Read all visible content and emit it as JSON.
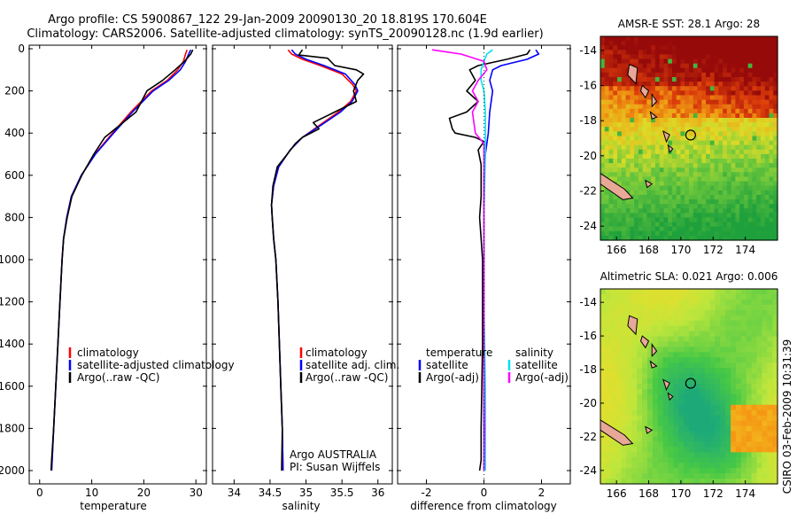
{
  "figure": {
    "title_line1": "Argo profile: CS 5900867_122 29-Jan-2009 20090130_20 18.819S 170.604E",
    "title_line2": "Climatology: CARS2006. Satellite-adjusted climatology: synTS_20090128.nc (1.9d earlier)",
    "side_label": "CSIRO 03-Feb-2009 10:31:39"
  },
  "colors": {
    "climatology": "#ff0000",
    "satellite": "#0000ff",
    "argo": "#000000",
    "sal_satellite": "#00e0f0",
    "sal_argo": "#ff00ff",
    "island": "#e8a898",
    "land_outline": "#000000"
  },
  "chart_data": [
    {
      "type": "line",
      "name": "temperature-profile",
      "xlabel": "temperature",
      "ylabel": "",
      "xlim": [
        -2,
        32
      ],
      "ylim": [
        2050,
        0
      ],
      "xticks": [
        0,
        10,
        20,
        30
      ],
      "yticks": [
        0,
        200,
        400,
        600,
        800,
        1000,
        1200,
        1400,
        1600,
        1800,
        2000
      ],
      "legend": [
        "climatology",
        "satellite-adjusted climatology",
        "Argo(..raw -QC)"
      ],
      "series": [
        {
          "name": "climatology",
          "color": "#ff0000",
          "points": [
            [
              28.3,
              5
            ],
            [
              28.0,
              25
            ],
            [
              27.6,
              60
            ],
            [
              26.5,
              100
            ],
            [
              24.5,
              150
            ],
            [
              21.5,
              200
            ],
            [
              17.5,
              300
            ],
            [
              14.0,
              400
            ],
            [
              10.6,
              500
            ],
            [
              8.0,
              600
            ],
            [
              6.1,
              700
            ],
            [
              5.2,
              800
            ],
            [
              4.6,
              900
            ],
            [
              4.3,
              1000
            ],
            [
              3.9,
              1200
            ],
            [
              3.5,
              1400
            ],
            [
              3.1,
              1600
            ],
            [
              2.7,
              1800
            ],
            [
              2.4,
              1950
            ],
            [
              2.3,
              2000
            ]
          ]
        },
        {
          "name": "satellite",
          "color": "#0000ff",
          "points": [
            [
              29.0,
              5
            ],
            [
              28.6,
              25
            ],
            [
              28.0,
              60
            ],
            [
              27.0,
              100
            ],
            [
              24.8,
              150
            ],
            [
              21.8,
              200
            ],
            [
              17.8,
              300
            ],
            [
              14.2,
              400
            ],
            [
              10.7,
              500
            ],
            [
              8.0,
              600
            ],
            [
              6.1,
              700
            ],
            [
              5.2,
              800
            ],
            [
              4.6,
              900
            ],
            [
              4.3,
              1000
            ],
            [
              3.9,
              1200
            ],
            [
              3.5,
              1400
            ],
            [
              3.1,
              1600
            ],
            [
              2.7,
              1800
            ],
            [
              2.4,
              1950
            ],
            [
              2.3,
              2000
            ]
          ]
        },
        {
          "name": "Argo",
          "color": "#000000",
          "points": [
            [
              29.4,
              5
            ],
            [
              29.0,
              25
            ],
            [
              27.8,
              60
            ],
            [
              26.0,
              100
            ],
            [
              23.6,
              150
            ],
            [
              20.6,
              200
            ],
            [
              18.5,
              300
            ],
            [
              15.0,
              370
            ],
            [
              12.5,
              420
            ],
            [
              10.4,
              500
            ],
            [
              8.1,
              600
            ],
            [
              6.2,
              700
            ],
            [
              5.3,
              800
            ],
            [
              4.6,
              900
            ],
            [
              4.3,
              1000
            ],
            [
              3.9,
              1200
            ],
            [
              3.5,
              1400
            ],
            [
              3.1,
              1600
            ],
            [
              2.7,
              1800
            ],
            [
              2.3,
              1950
            ],
            [
              2.2,
              2000
            ]
          ]
        }
      ]
    },
    {
      "type": "line",
      "name": "salinity-profile",
      "xlabel": "salinity",
      "xlim": [
        33.7,
        36.2
      ],
      "ylim": [
        2050,
        0
      ],
      "xticks": [
        34,
        34.5,
        35,
        35.5,
        36
      ],
      "legend": [
        "climatology",
        "satellite adj. clim.",
        "Argo(..raw -QC)"
      ],
      "series": [
        {
          "name": "climatology",
          "color": "#ff0000",
          "points": [
            [
              34.75,
              5
            ],
            [
              34.8,
              25
            ],
            [
              34.95,
              50
            ],
            [
              35.2,
              80
            ],
            [
              35.5,
              120
            ],
            [
              35.65,
              170
            ],
            [
              35.7,
              200
            ],
            [
              35.62,
              250
            ],
            [
              35.45,
              300
            ],
            [
              35.2,
              360
            ],
            [
              34.95,
              420
            ],
            [
              34.78,
              480
            ],
            [
              34.62,
              560
            ],
            [
              34.55,
              650
            ],
            [
              34.52,
              740
            ],
            [
              34.53,
              800
            ],
            [
              34.55,
              900
            ],
            [
              34.58,
              1000
            ],
            [
              34.61,
              1200
            ],
            [
              34.63,
              1400
            ],
            [
              34.65,
              1600
            ],
            [
              34.67,
              1800
            ],
            [
              34.68,
              2000
            ]
          ]
        },
        {
          "name": "satellite",
          "color": "#0000ff",
          "points": [
            [
              34.8,
              5
            ],
            [
              34.85,
              25
            ],
            [
              35.0,
              50
            ],
            [
              35.25,
              80
            ],
            [
              35.55,
              120
            ],
            [
              35.68,
              170
            ],
            [
              35.72,
              200
            ],
            [
              35.64,
              250
            ],
            [
              35.48,
              300
            ],
            [
              35.22,
              360
            ],
            [
              34.95,
              420
            ],
            [
              34.78,
              480
            ],
            [
              34.62,
              560
            ],
            [
              34.55,
              650
            ],
            [
              34.52,
              740
            ],
            [
              34.53,
              800
            ],
            [
              34.55,
              900
            ],
            [
              34.58,
              1000
            ],
            [
              34.61,
              1200
            ],
            [
              34.63,
              1400
            ],
            [
              34.65,
              1600
            ],
            [
              34.67,
              1800
            ],
            [
              34.68,
              2000
            ]
          ]
        },
        {
          "name": "Argo",
          "color": "#000000",
          "points": [
            [
              34.95,
              5
            ],
            [
              34.9,
              30
            ],
            [
              35.3,
              45
            ],
            [
              35.4,
              80
            ],
            [
              35.7,
              100
            ],
            [
              35.8,
              120
            ],
            [
              35.72,
              150
            ],
            [
              35.66,
              200
            ],
            [
              35.7,
              250
            ],
            [
              35.4,
              300
            ],
            [
              35.1,
              350
            ],
            [
              35.18,
              380
            ],
            [
              34.95,
              420
            ],
            [
              34.85,
              450
            ],
            [
              34.74,
              500
            ],
            [
              34.6,
              560
            ],
            [
              34.54,
              650
            ],
            [
              34.52,
              740
            ],
            [
              34.53,
              800
            ],
            [
              34.55,
              900
            ],
            [
              34.58,
              1000
            ],
            [
              34.61,
              1200
            ],
            [
              34.63,
              1400
            ],
            [
              34.65,
              1600
            ],
            [
              34.67,
              1800
            ],
            [
              34.66,
              2000
            ]
          ]
        }
      ]
    },
    {
      "type": "line",
      "name": "difference-profile",
      "xlabel": "difference from climatology",
      "xlim": [
        -3,
        3
      ],
      "ylim": [
        2050,
        0
      ],
      "xticks": [
        -2,
        0,
        2
      ],
      "legend_left_title": "temperature",
      "legend_right_title": "salinity",
      "legend": [
        "satellite",
        "Argo(-adj)",
        "satellite",
        "Argo(-adj)"
      ],
      "series": [
        {
          "name": "temperature satellite",
          "color": "#0000ff",
          "points": [
            [
              1.8,
              5
            ],
            [
              1.9,
              25
            ],
            [
              1.5,
              50
            ],
            [
              0.6,
              80
            ],
            [
              0.3,
              100
            ],
            [
              0.2,
              150
            ],
            [
              0.3,
              200
            ],
            [
              0.2,
              300
            ],
            [
              0.15,
              400
            ],
            [
              0.05,
              500
            ],
            [
              0.0,
              600
            ],
            [
              0.0,
              800
            ],
            [
              0.0,
              1200
            ],
            [
              0.0,
              1600
            ],
            [
              0.0,
              2000
            ]
          ]
        },
        {
          "name": "temperature Argo(-adj)",
          "color": "#000000",
          "points": [
            [
              1.6,
              5
            ],
            [
              1.5,
              25
            ],
            [
              0.8,
              50
            ],
            [
              -0.2,
              80
            ],
            [
              -0.5,
              100
            ],
            [
              -0.3,
              150
            ],
            [
              -0.6,
              200
            ],
            [
              -0.2,
              250
            ],
            [
              -0.6,
              300
            ],
            [
              -1.2,
              330
            ],
            [
              -1.1,
              380
            ],
            [
              -1.0,
              400
            ],
            [
              -0.3,
              420
            ],
            [
              0.0,
              440
            ],
            [
              -0.2,
              480
            ],
            [
              -0.1,
              550
            ],
            [
              -0.1,
              600
            ],
            [
              -0.1,
              700
            ],
            [
              -0.15,
              800
            ],
            [
              -0.1,
              900
            ],
            [
              -0.05,
              1000
            ],
            [
              -0.05,
              1400
            ],
            [
              -0.1,
              1800
            ],
            [
              -0.1,
              1950
            ],
            [
              -0.15,
              2000
            ]
          ]
        },
        {
          "name": "salinity satellite",
          "color": "#00e0f0",
          "points": [
            [
              0.3,
              5
            ],
            [
              0.1,
              25
            ],
            [
              0.0,
              60
            ],
            [
              -0.1,
              100
            ],
            [
              -0.1,
              150
            ],
            [
              0.0,
              200
            ],
            [
              0.05,
              300
            ],
            [
              0.05,
              500
            ],
            [
              0.0,
              800
            ],
            [
              0.0,
              1200
            ],
            [
              0.05,
              1600
            ],
            [
              0.05,
              2000
            ]
          ]
        },
        {
          "name": "salinity Argo(-adj)",
          "color": "#ff00ff",
          "points": [
            [
              -1.8,
              5
            ],
            [
              -0.8,
              25
            ],
            [
              0.0,
              60
            ],
            [
              0.1,
              100
            ],
            [
              -0.2,
              150
            ],
            [
              -0.4,
              200
            ],
            [
              -0.2,
              250
            ],
            [
              -0.4,
              300
            ],
            [
              -0.3,
              400
            ],
            [
              0.0,
              450
            ],
            [
              0.0,
              500
            ],
            [
              0.0,
              600
            ],
            [
              0.0,
              800
            ],
            [
              0.0,
              1000
            ],
            [
              0.0,
              1200
            ],
            [
              0.0,
              1600
            ],
            [
              0.02,
              1800
            ],
            [
              0.0,
              2000
            ]
          ]
        }
      ]
    },
    {
      "type": "heatmap",
      "name": "sst-map",
      "title": "AMSR-E SST: 28.1  Argo: 28",
      "xlim": [
        165,
        176
      ],
      "ylim": [
        -24.8,
        -13.2
      ],
      "xticks": [
        166,
        168,
        170,
        172,
        174
      ],
      "yticks": [
        -14,
        -16,
        -18,
        -20,
        -22,
        -24
      ],
      "argo_position": [
        170.604,
        -18.819
      ]
    },
    {
      "type": "heatmap",
      "name": "sla-map",
      "title": "Altimetric SLA: 0.021  Argo: 0.006",
      "xlim": [
        165,
        176
      ],
      "ylim": [
        -24.8,
        -13.2
      ],
      "xticks": [
        166,
        168,
        170,
        172,
        174
      ],
      "yticks": [
        -14,
        -16,
        -18,
        -20,
        -22,
        -24
      ],
      "argo_position": [
        170.604,
        -18.819
      ]
    }
  ],
  "panels": {
    "temperature": {
      "legend": [
        "climatology",
        "satellite-adjusted climatology",
        "Argo(..raw -QC)"
      ]
    },
    "salinity": {
      "legend": [
        "climatology",
        "satellite adj. clim.",
        "Argo(..raw -QC)"
      ],
      "attribution_line1": "Argo AUSTRALIA",
      "attribution_line2": "PI: Susan Wijffels"
    },
    "difference": {
      "temperature_title": "temperature",
      "salinity_title": "salinity",
      "temperature_items": [
        "satellite",
        "Argo(-adj)"
      ],
      "salinity_items": [
        "satellite",
        "Argo(-adj)"
      ]
    }
  }
}
